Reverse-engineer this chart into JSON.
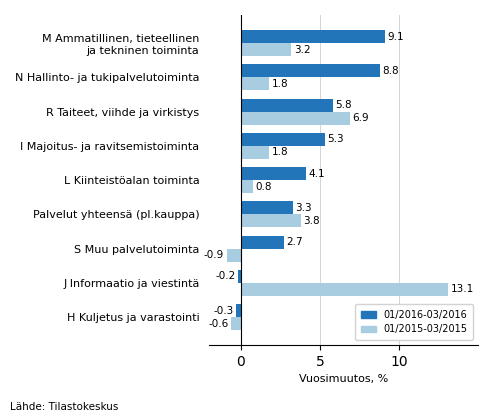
{
  "categories": [
    "M Ammatillinen, tieteellinen\nja tekninen toiminta",
    "N Hallinto- ja tukipalvelutoiminta",
    "R Taiteet, viihde ja virkistys",
    "I Majoitus- ja ravitsemistoiminta",
    "L Kiinteistöalan toiminta",
    "Palvelut yhteensä (pl.kauppa)",
    "S Muu palvelutoiminta",
    "J Informaatio ja viestintä",
    "H Kuljetus ja varastointi"
  ],
  "series1_values": [
    9.1,
    8.8,
    5.8,
    5.3,
    4.1,
    3.3,
    2.7,
    -0.2,
    -0.3
  ],
  "series2_values": [
    3.2,
    1.8,
    6.9,
    1.8,
    0.8,
    3.8,
    -0.9,
    13.1,
    -0.6
  ],
  "series1_color": "#2175b8",
  "series2_color": "#a8cce0",
  "series1_label": "01/2016-03/2016",
  "series2_label": "01/2015-03/2015",
  "xlabel": "Vuosimuutos, %",
  "footer": "Lähde: Tilastokeskus",
  "xlim": [
    -2,
    15
  ],
  "bar_height": 0.38,
  "value_fontsize": 7.5,
  "label_fontsize": 8.0
}
